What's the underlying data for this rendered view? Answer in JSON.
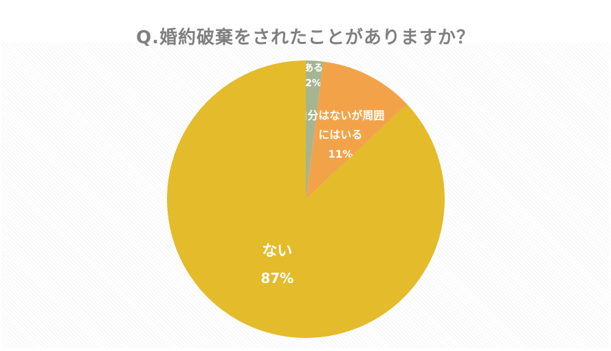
{
  "chart_data": {
    "type": "pie",
    "title": "Q.婚約破棄をされたことがありますか？",
    "slices": [
      {
        "label": "ある",
        "label_lines": [
          "ある"
        ],
        "value": 2,
        "value_label": "2%",
        "color": "#a5b592"
      },
      {
        "label": "自分はないが周囲にはいる",
        "label_lines": [
          "自分はないが周囲",
          "にはいる"
        ],
        "value": 11,
        "value_label": "11%",
        "color": "#f2a34a"
      },
      {
        "label": "ない",
        "label_lines": [
          "ない"
        ],
        "value": 87,
        "value_label": "87%",
        "color": "#e3bb2b"
      }
    ],
    "start_angle_deg": 0,
    "direction": "clockwise",
    "legend": "none"
  }
}
